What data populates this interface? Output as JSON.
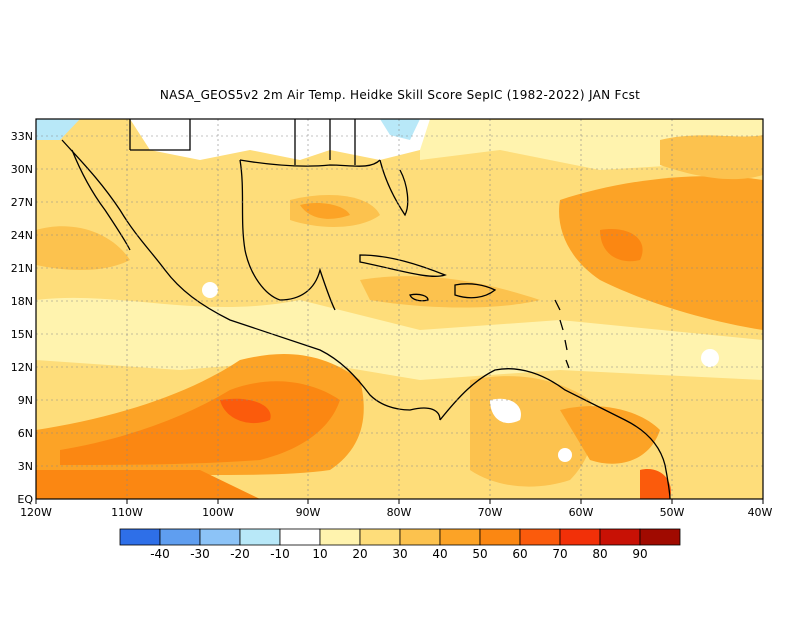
{
  "title": "NASA_GEOS5v2  2m Air Temp. Heidke Skill Score SepIC (1982-2022) JAN Fcst",
  "map": {
    "lon_labels": [
      "120W",
      "110W",
      "100W",
      "90W",
      "80W",
      "70W",
      "60W",
      "50W",
      "40W"
    ],
    "lat_labels": [
      "EQ",
      "3N",
      "6N",
      "9N",
      "12N",
      "15N",
      "18N",
      "21N",
      "24N",
      "27N",
      "30N",
      "33N"
    ]
  },
  "colorbar": {
    "colors": [
      "#2e6fe8",
      "#5f9ef0",
      "#8cc3f7",
      "#b8e8f8",
      "#ffffff",
      "#fff3ae",
      "#fedd7a",
      "#fcc24e",
      "#fca326",
      "#fb8712",
      "#fb5b0c",
      "#f23008",
      "#c81105",
      "#a00a00"
    ],
    "labels": [
      "-40",
      "-30",
      "-20",
      "-10",
      "10",
      "20",
      "30",
      "40",
      "50",
      "60",
      "70",
      "80",
      "90"
    ]
  }
}
